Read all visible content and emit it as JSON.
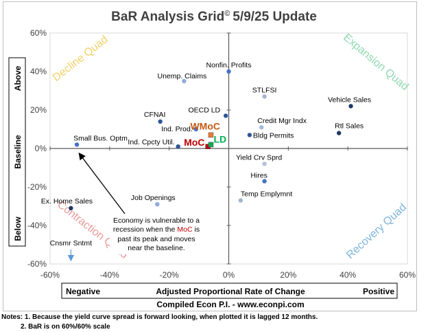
{
  "chart_data": {
    "type": "scatter",
    "title": "BaR Analysis Grid",
    "title_mark": "©",
    "title_date": "5/9/25 Update",
    "xlabel": "Adjusted Proportional Rate of Change",
    "x_negative_label": "Negative",
    "x_positive_label": "Positive",
    "y_side_labels": {
      "top": "Above",
      "middle": "Baseline",
      "bottom": "Below"
    },
    "xlim": [
      -60,
      60
    ],
    "ylim": [
      -60,
      60
    ],
    "x_ticks": [
      "-60%",
      "-40%",
      "-20%",
      "0%",
      "20%",
      "40%",
      "60%"
    ],
    "y_ticks": [
      "60%",
      "40%",
      "20%",
      "0%",
      "-20%",
      "-40%",
      "-60%"
    ],
    "quadrants": {
      "top_left": "Decline Quad",
      "top_right": "Expansion Quad",
      "bottom_left": "Contraction Quad",
      "bottom_right": "Recovery Quad"
    },
    "quadrant_colors": {
      "top_left": "#f2d16b",
      "top_right": "#8fd8b0",
      "bottom_left": "#e89a9a",
      "bottom_right": "#7fb5dc"
    },
    "points": [
      {
        "label": "Nonfin. Profits",
        "x": 0,
        "y": 40,
        "color": "#4472c4"
      },
      {
        "label": "Unemp. Claims",
        "x": -15,
        "y": 35,
        "color": "#8faadc"
      },
      {
        "label": "STLFSI",
        "x": 12,
        "y": 27,
        "color": "#a6b3d0"
      },
      {
        "label": "Vehicle Sales",
        "x": 41,
        "y": 22,
        "color": "#1f3864"
      },
      {
        "label": "OECD LD",
        "x": -1,
        "y": 17,
        "color": "#2f5597"
      },
      {
        "label": "Credit Mgr Indx",
        "x": 11,
        "y": 11,
        "color": "#a6b8e0"
      },
      {
        "label": "CFNAI",
        "x": -23,
        "y": 14,
        "color": "#2f5597"
      },
      {
        "label": "Ind. Prod.",
        "x": -11,
        "y": 10,
        "color": "#4472c4"
      },
      {
        "label": "Bldg Permits",
        "x": 7,
        "y": 7,
        "color": "#2f5597"
      },
      {
        "label": "Rtl Sales",
        "x": 37,
        "y": 8,
        "color": "#1f3864"
      },
      {
        "label": "Small Bus. Optm",
        "x": -51,
        "y": 2,
        "color": "#4472c4"
      },
      {
        "label": "Ind. Cpcty Util.",
        "x": -17,
        "y": 1,
        "color": "#2f5597"
      },
      {
        "label": "Yield Crv Sprd",
        "x": 12,
        "y": -8,
        "color": "#b4c0dc"
      },
      {
        "label": "Hires",
        "x": 12,
        "y": -17,
        "color": "#4472c4"
      },
      {
        "label": "Temp Emplymnt",
        "x": 4,
        "y": -27,
        "color": "#a6b3d0"
      },
      {
        "label": "Job Openings",
        "x": -24,
        "y": -29,
        "color": "#8faadc"
      },
      {
        "label": "Ex. Home Sales",
        "x": -53,
        "y": -31,
        "color": "#1f3864"
      }
    ],
    "markers": [
      {
        "label": "WMoC",
        "x": -6,
        "y": 7,
        "color": "#ed7d31",
        "text_color": "#c55a11"
      },
      {
        "label": "MoC",
        "x": -7,
        "y": 1,
        "color": "#c00000",
        "text_color": "#c00000"
      },
      {
        "label": "LD",
        "x": -6,
        "y": 2,
        "color": "#00b050",
        "text_color": "#00b050"
      }
    ],
    "offscale_point": {
      "label": "Cnsmr Sntmt",
      "x": -53,
      "direction": "down",
      "color": "#5b9bd5"
    },
    "annotation": {
      "lines": [
        "Economy is vulnerable to a",
        "recession when the",
        "MoC",
        "is",
        "past its peak and moves",
        "near the baseline."
      ],
      "arrow_to": {
        "x": -51,
        "y": 0
      }
    },
    "grid": false
  },
  "footer": {
    "credit": "Compiled Econ P.I. - www.econpi.com"
  },
  "notes": {
    "line1": "Notes: 1. Because the yield curve spread is forward looking, when plotted it is lagged 12 months.",
    "line2": "2. BaR is on 60%/60% scale"
  }
}
